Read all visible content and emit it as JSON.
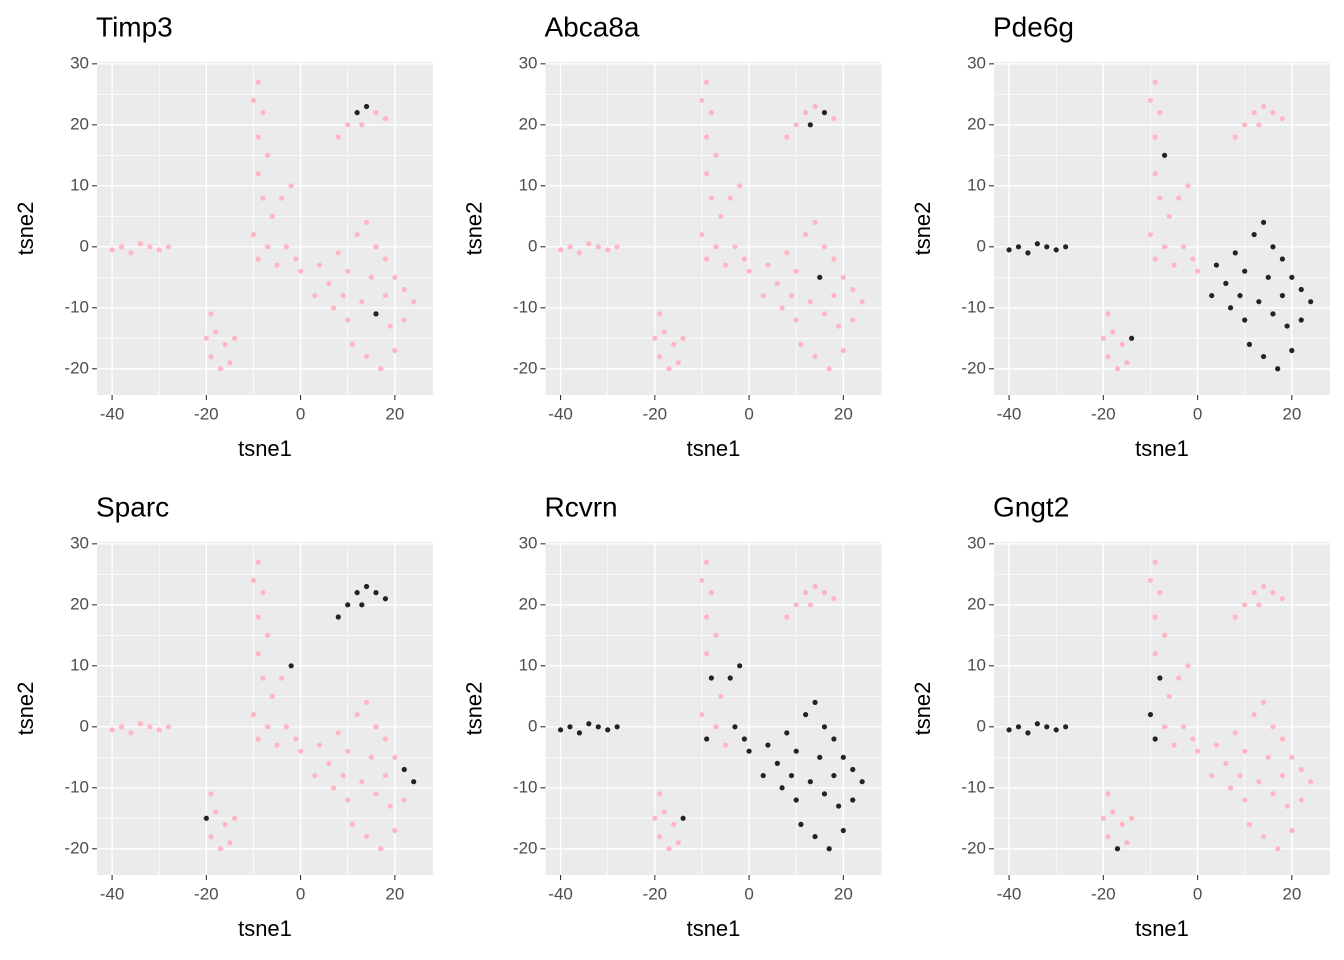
{
  "chart_data": [
    {
      "type": "scatter",
      "title": "Timp3",
      "xlabel": "tsne1",
      "ylabel": "tsne2",
      "xlim": [
        -43.2,
        28.1
      ],
      "ylim": [
        -24.3,
        30.3
      ],
      "xticks": [
        -40,
        -20,
        0,
        20
      ],
      "yticks": [
        -20,
        -10,
        0,
        10,
        20,
        30
      ],
      "grid": true,
      "series": [
        {
          "color": "#ffb6c1",
          "x": [
            -40,
            -38,
            -36,
            -34,
            -32,
            -30,
            -28,
            -19,
            -18,
            -16,
            -19,
            -15,
            -14,
            -17,
            -20,
            -9,
            -10,
            -8,
            -9,
            -7,
            -9,
            -8,
            -6,
            -10,
            -7,
            -9,
            -5,
            -4,
            -2,
            -3,
            -1,
            0,
            8,
            10,
            16,
            18,
            13,
            4,
            6,
            8,
            10,
            12,
            14,
            16,
            18,
            20,
            22,
            24,
            3,
            7,
            10,
            13,
            19,
            22,
            11,
            14,
            17,
            20,
            9,
            15,
            18
          ],
          "values": [
            -0.5,
            0,
            -1,
            0.5,
            0,
            -0.5,
            0,
            -11,
            -14,
            -16,
            -18,
            -19,
            -15,
            -20,
            -15,
            27,
            24,
            22,
            18,
            15,
            12,
            8,
            5,
            2,
            0,
            -2,
            -3,
            8,
            10,
            0,
            -2,
            -4,
            18,
            20,
            22,
            21,
            20,
            -3,
            -6,
            -1,
            -4,
            2,
            4,
            0,
            -2,
            -5,
            -7,
            -9,
            -8,
            -10,
            -12,
            -9,
            -13,
            -12,
            -16,
            -18,
            -20,
            -17,
            -8,
            -5,
            -8
          ]
        },
        {
          "color": "#2b1f22",
          "x": [
            12,
            14,
            16
          ],
          "values": [
            22,
            23,
            -11
          ]
        }
      ]
    },
    {
      "type": "scatter",
      "title": "Abca8a",
      "xlabel": "tsne1",
      "ylabel": "tsne2",
      "xlim": [
        -43.2,
        28.1
      ],
      "ylim": [
        -24.3,
        30.3
      ],
      "xticks": [
        -40,
        -20,
        0,
        20
      ],
      "yticks": [
        -20,
        -10,
        0,
        10,
        20,
        30
      ],
      "grid": true,
      "series": [
        {
          "color": "#ffb6c1",
          "x": [
            -40,
            -38,
            -36,
            -34,
            -32,
            -30,
            -28,
            -19,
            -18,
            -16,
            -19,
            -15,
            -14,
            -17,
            -20,
            -9,
            -10,
            -8,
            -9,
            -7,
            -9,
            -8,
            -6,
            -10,
            -7,
            -9,
            -5,
            -4,
            -2,
            -3,
            -1,
            0,
            8,
            10,
            12,
            14,
            18,
            4,
            6,
            8,
            10,
            12,
            14,
            16,
            18,
            20,
            22,
            24,
            3,
            7,
            10,
            13,
            16,
            19,
            22,
            11,
            14,
            17,
            20,
            9,
            18
          ],
          "values": [
            -0.5,
            0,
            -1,
            0.5,
            0,
            -0.5,
            0,
            -11,
            -14,
            -16,
            -18,
            -19,
            -15,
            -20,
            -15,
            27,
            24,
            22,
            18,
            15,
            12,
            8,
            5,
            2,
            0,
            -2,
            -3,
            8,
            10,
            0,
            -2,
            -4,
            18,
            20,
            22,
            23,
            21,
            -3,
            -6,
            -1,
            -4,
            2,
            4,
            0,
            -2,
            -5,
            -7,
            -9,
            -8,
            -10,
            -12,
            -9,
            -11,
            -13,
            -12,
            -16,
            -18,
            -20,
            -17,
            -8,
            -8
          ]
        },
        {
          "color": "#2b1f22",
          "x": [
            13,
            16,
            15
          ],
          "values": [
            20,
            22,
            -5
          ]
        }
      ]
    },
    {
      "type": "scatter",
      "title": "Pde6g",
      "xlabel": "tsne1",
      "ylabel": "tsne2",
      "xlim": [
        -43.2,
        28.1
      ],
      "ylim": [
        -24.3,
        30.3
      ],
      "xticks": [
        -40,
        -20,
        0,
        20
      ],
      "yticks": [
        -20,
        -10,
        0,
        10,
        20,
        30
      ],
      "grid": true,
      "series": [
        {
          "color": "#ffb6c1",
          "x": [
            -19,
            -18,
            -16,
            -19,
            -15,
            -17,
            -20,
            -9,
            -10,
            -8,
            -9,
            -9,
            -8,
            -6,
            -10,
            -7,
            -9,
            -5,
            -4,
            -2,
            -3,
            -1,
            0,
            8,
            10,
            12,
            14,
            16,
            18,
            13
          ],
          "values": [
            -11,
            -14,
            -16,
            -18,
            -19,
            -20,
            -15,
            27,
            24,
            22,
            18,
            12,
            8,
            5,
            2,
            0,
            -2,
            -3,
            8,
            10,
            0,
            -2,
            -4,
            18,
            20,
            22,
            23,
            22,
            21,
            20
          ]
        },
        {
          "color": "#2b1f22",
          "x": [
            -40,
            -38,
            -36,
            -34,
            -32,
            -30,
            -28,
            4,
            6,
            8,
            10,
            12,
            14,
            16,
            18,
            20,
            22,
            24,
            3,
            7,
            10,
            13,
            16,
            19,
            22,
            11,
            14,
            17,
            20,
            9,
            15,
            18,
            -14,
            -7
          ],
          "values": [
            -0.5,
            0,
            -1,
            0.5,
            0,
            -0.5,
            0,
            -3,
            -6,
            -1,
            -4,
            2,
            4,
            0,
            -2,
            -5,
            -7,
            -9,
            -8,
            -10,
            -12,
            -9,
            -11,
            -13,
            -12,
            -16,
            -18,
            -20,
            -17,
            -8,
            -5,
            -8,
            -15,
            15
          ]
        }
      ]
    },
    {
      "type": "scatter",
      "title": "Sparc",
      "xlabel": "tsne1",
      "ylabel": "tsne2",
      "xlim": [
        -43.2,
        28.1
      ],
      "ylim": [
        -24.3,
        30.3
      ],
      "xticks": [
        -40,
        -20,
        0,
        20
      ],
      "yticks": [
        -20,
        -10,
        0,
        10,
        20,
        30
      ],
      "grid": true,
      "series": [
        {
          "color": "#ffb6c1",
          "x": [
            -40,
            -38,
            -36,
            -34,
            -32,
            -30,
            -28,
            -19,
            -18,
            -16,
            -19,
            -15,
            -14,
            -17,
            -9,
            -10,
            -8,
            -9,
            -7,
            -9,
            -8,
            -6,
            -10,
            -7,
            -9,
            -5,
            -4,
            -3,
            -1,
            0,
            4,
            6,
            8,
            10,
            12,
            14,
            16,
            18,
            20,
            3,
            7,
            10,
            13,
            16,
            19,
            22,
            11,
            14,
            17,
            20,
            9,
            15,
            18
          ],
          "values": [
            -0.5,
            0,
            -1,
            0.5,
            0,
            -0.5,
            0,
            -11,
            -14,
            -16,
            -18,
            -19,
            -15,
            -20,
            27,
            24,
            22,
            18,
            15,
            12,
            8,
            5,
            2,
            0,
            -2,
            -3,
            8,
            0,
            -2,
            -4,
            -3,
            -6,
            -1,
            -4,
            2,
            4,
            0,
            -2,
            -5,
            -8,
            -10,
            -12,
            -9,
            -11,
            -13,
            -12,
            -16,
            -18,
            -20,
            -17,
            -8,
            -5,
            -8
          ]
        },
        {
          "color": "#2b1f22",
          "x": [
            8,
            10,
            12,
            14,
            16,
            18,
            13,
            -2,
            22,
            24,
            -20
          ],
          "values": [
            18,
            20,
            22,
            23,
            22,
            21,
            20,
            10,
            -7,
            -9,
            -15
          ]
        }
      ]
    },
    {
      "type": "scatter",
      "title": "Rcvrn",
      "xlabel": "tsne1",
      "ylabel": "tsne2",
      "xlim": [
        -43.2,
        28.1
      ],
      "ylim": [
        -24.3,
        30.3
      ],
      "xticks": [
        -40,
        -20,
        0,
        20
      ],
      "yticks": [
        -20,
        -10,
        0,
        10,
        20,
        30
      ],
      "grid": true,
      "series": [
        {
          "color": "#ffb6c1",
          "x": [
            -19,
            -18,
            -16,
            -19,
            -15,
            -17,
            -20,
            -9,
            -10,
            -8,
            -9,
            -7,
            -9,
            -6,
            -10,
            -7,
            -5,
            8,
            10,
            12,
            14,
            16,
            18,
            13
          ],
          "values": [
            -11,
            -14,
            -16,
            -18,
            -19,
            -20,
            -15,
            27,
            24,
            22,
            18,
            15,
            12,
            5,
            2,
            0,
            -3,
            18,
            20,
            22,
            23,
            22,
            21,
            20
          ]
        },
        {
          "color": "#2b1f22",
          "x": [
            -40,
            -38,
            -36,
            -34,
            -32,
            -30,
            -28,
            4,
            6,
            8,
            10,
            12,
            14,
            16,
            18,
            20,
            22,
            24,
            3,
            7,
            10,
            13,
            16,
            19,
            22,
            11,
            14,
            17,
            20,
            9,
            15,
            18,
            -4,
            -2,
            -3,
            -1,
            0,
            -8,
            -9,
            -14
          ],
          "values": [
            -0.5,
            0,
            -1,
            0.5,
            0,
            -0.5,
            0,
            -3,
            -6,
            -1,
            -4,
            2,
            4,
            0,
            -2,
            -5,
            -7,
            -9,
            -8,
            -10,
            -12,
            -9,
            -11,
            -13,
            -12,
            -16,
            -18,
            -20,
            -17,
            -8,
            -5,
            -8,
            8,
            10,
            0,
            -2,
            -4,
            8,
            -2,
            -15
          ]
        }
      ]
    },
    {
      "type": "scatter",
      "title": "Gngt2",
      "xlabel": "tsne1",
      "ylabel": "tsne2",
      "xlim": [
        -43.2,
        28.1
      ],
      "ylim": [
        -24.3,
        30.3
      ],
      "xticks": [
        -40,
        -20,
        0,
        20
      ],
      "yticks": [
        -20,
        -10,
        0,
        10,
        20,
        30
      ],
      "grid": true,
      "series": [
        {
          "color": "#ffb6c1",
          "x": [
            -19,
            -18,
            -16,
            -19,
            -15,
            -14,
            -20,
            -9,
            -10,
            -8,
            -9,
            -7,
            -9,
            -6,
            -7,
            -5,
            -4,
            -2,
            -3,
            -1,
            0,
            8,
            10,
            12,
            14,
            16,
            18,
            13,
            4,
            6,
            8,
            10,
            12,
            14,
            16,
            18,
            20,
            22,
            24,
            3,
            7,
            10,
            13,
            16,
            19,
            22,
            11,
            14,
            17,
            20,
            9,
            15,
            18
          ],
          "values": [
            -11,
            -14,
            -16,
            -18,
            -19,
            -15,
            -15,
            27,
            24,
            22,
            18,
            15,
            12,
            5,
            0,
            -3,
            8,
            10,
            0,
            -2,
            -4,
            18,
            20,
            22,
            23,
            22,
            21,
            20,
            -3,
            -6,
            -1,
            -4,
            2,
            4,
            0,
            -2,
            -5,
            -7,
            -9,
            -8,
            -10,
            -12,
            -9,
            -11,
            -13,
            -12,
            -16,
            -18,
            -20,
            -17,
            -8,
            -5,
            -8
          ]
        },
        {
          "color": "#2b1f22",
          "x": [
            -40,
            -38,
            -36,
            -34,
            -32,
            -30,
            -28,
            -10,
            -9,
            -8,
            -17
          ],
          "values": [
            -0.5,
            0,
            -1,
            0.5,
            0,
            -0.5,
            0,
            2,
            -2,
            8,
            -20
          ]
        }
      ]
    }
  ]
}
